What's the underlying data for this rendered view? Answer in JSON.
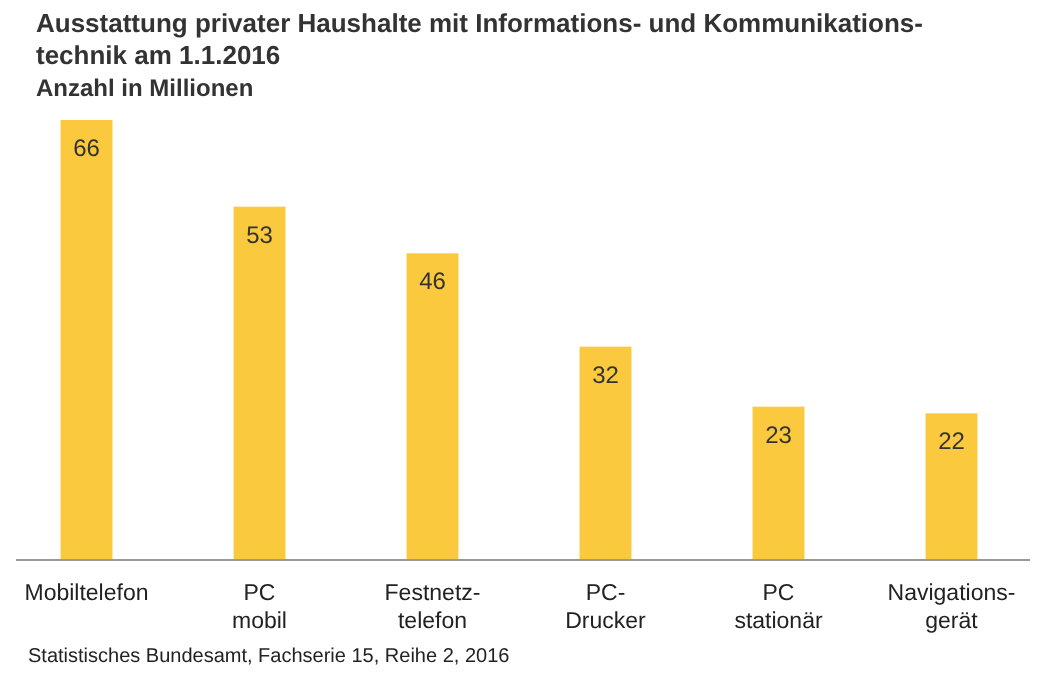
{
  "chart_data": {
    "type": "bar",
    "title": "Ausstattung privater Haushalte mit Informations- und Kommunikations-\ntechnik am 1.1.2016",
    "subtitle": "Anzahl in Millionen",
    "categories": [
      "Mobiltelefon",
      "PC\nmobil",
      "Festnetz-\ntelefon",
      "PC-\nDrucker",
      "PC\nstationär",
      "Navigations-\ngerät"
    ],
    "values": [
      66,
      53,
      46,
      32,
      23,
      22
    ],
    "color": "#fbc93d",
    "data_labels": true,
    "annotations": [
      "Statistisches Bundesamt, Fachserie 15, Reihe 2, 2016"
    ]
  }
}
